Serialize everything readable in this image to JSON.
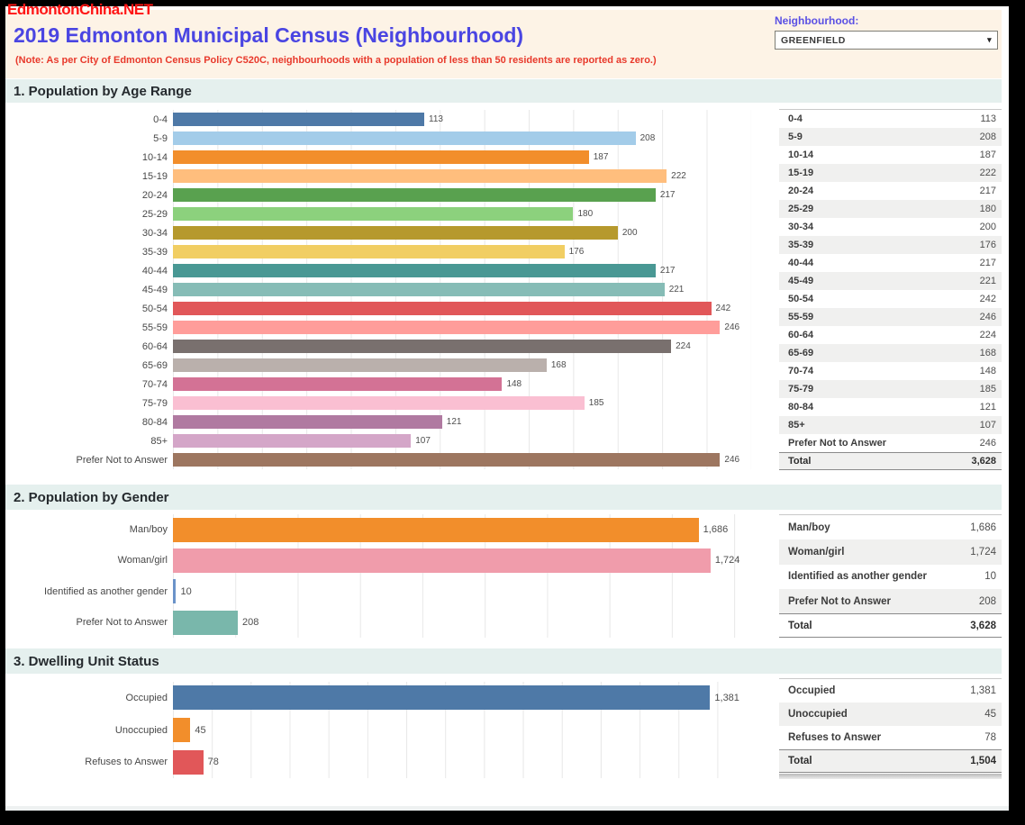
{
  "watermark": "EdmontonChina.NET",
  "header": {
    "title": "2019 Edmonton Municipal Census (Neighbourhood)",
    "note": "(Note: As per City of Edmonton Census Policy C520C, neighbourhoods with a population of less than 50 residents are reported as zero.)",
    "filter_label": "Neighbourhood:",
    "filter_value": "GREENFIELD",
    "caret_icon": "▾"
  },
  "section_titles": {
    "s1": "1. Population by Age Range",
    "s2": "2. Population by Gender",
    "s3": "3. Dwelling Unit Status"
  },
  "colors": {
    "gridline": "#e8e8e8",
    "title_blue": "#4a45e2",
    "note_red": "#e8392b",
    "header_cream": "#fdf3e6",
    "section_mint": "#e5f0ee"
  },
  "chart_data": [
    {
      "type": "bar",
      "orientation": "horizontal",
      "title": "1. Population by Age Range",
      "categories": [
        "0-4",
        "5-9",
        "10-14",
        "15-19",
        "20-24",
        "25-29",
        "30-34",
        "35-39",
        "40-44",
        "45-49",
        "50-54",
        "55-59",
        "60-64",
        "65-69",
        "70-74",
        "75-79",
        "80-84",
        "85+",
        "Prefer Not to Answer"
      ],
      "values": [
        113,
        208,
        187,
        222,
        217,
        180,
        200,
        176,
        217,
        221,
        242,
        246,
        224,
        168,
        148,
        185,
        121,
        107,
        246
      ],
      "value_labels": [
        "113",
        "208",
        "187",
        "222",
        "217",
        "180",
        "200",
        "176",
        "217",
        "221",
        "242",
        "246",
        "224",
        "168",
        "148",
        "185",
        "121",
        "107",
        "246"
      ],
      "bar_colors": [
        "#4e79a7",
        "#a3cce9",
        "#f28e2b",
        "#ffbe7d",
        "#59a14f",
        "#8cd17d",
        "#b6992d",
        "#f1ce63",
        "#499894",
        "#86bcb6",
        "#e15759",
        "#ff9d9a",
        "#79706e",
        "#bab0ac",
        "#d37295",
        "#fabfd2",
        "#b07aa1",
        "#d4a6c8",
        "#9d7660"
      ],
      "xlim": [
        0,
        260
      ],
      "gridline_interval": 20,
      "grid": true,
      "legend": false
    },
    {
      "type": "bar",
      "orientation": "horizontal",
      "title": "2. Population by Gender",
      "categories": [
        "Man/boy",
        "Woman/girl",
        "Identified as another gender",
        "Prefer Not to Answer"
      ],
      "values": [
        1686,
        1724,
        10,
        208
      ],
      "value_labels": [
        "1,686",
        "1,724",
        "10",
        "208"
      ],
      "bar_colors": [
        "#f28e2b",
        "#f09cab",
        "#6b93c9",
        "#79b7ab"
      ],
      "xlim": [
        0,
        1840
      ],
      "gridline_interval": 200,
      "grid": true,
      "legend": false
    },
    {
      "type": "bar",
      "orientation": "horizontal",
      "title": "3. Dwelling Unit Status",
      "categories": [
        "Occupied",
        "Unoccupied",
        "Refuses to Answer"
      ],
      "values": [
        1381,
        45,
        78
      ],
      "value_labels": [
        "1,381",
        "45",
        "78"
      ],
      "bar_colors": [
        "#4e79a7",
        "#f28e2b",
        "#e15759"
      ],
      "xlim": [
        0,
        1475
      ],
      "gridline_interval": 100,
      "grid": true,
      "legend": false
    }
  ],
  "tables": [
    {
      "rows": [
        {
          "label": "0-4",
          "value": "113"
        },
        {
          "label": "5-9",
          "value": "208"
        },
        {
          "label": "10-14",
          "value": "187"
        },
        {
          "label": "15-19",
          "value": "222"
        },
        {
          "label": "20-24",
          "value": "217"
        },
        {
          "label": "25-29",
          "value": "180"
        },
        {
          "label": "30-34",
          "value": "200"
        },
        {
          "label": "35-39",
          "value": "176"
        },
        {
          "label": "40-44",
          "value": "217"
        },
        {
          "label": "45-49",
          "value": "221"
        },
        {
          "label": "50-54",
          "value": "242"
        },
        {
          "label": "55-59",
          "value": "246"
        },
        {
          "label": "60-64",
          "value": "224"
        },
        {
          "label": "65-69",
          "value": "168"
        },
        {
          "label": "70-74",
          "value": "148"
        },
        {
          "label": "75-79",
          "value": "185"
        },
        {
          "label": "80-84",
          "value": "121"
        },
        {
          "label": "85+",
          "value": "107"
        },
        {
          "label": "Prefer Not to Answer",
          "value": "246"
        },
        {
          "label": "Total",
          "value": "3,628",
          "total": true
        }
      ]
    },
    {
      "rows": [
        {
          "label": "Man/boy",
          "value": "1,686"
        },
        {
          "label": "Woman/girl",
          "value": "1,724"
        },
        {
          "label": "Identified as another gender",
          "value": "10"
        },
        {
          "label": "Prefer Not to Answer",
          "value": "208"
        },
        {
          "label": "Total",
          "value": "3,628",
          "total": true
        }
      ]
    },
    {
      "rows": [
        {
          "label": "Occupied",
          "value": "1,381"
        },
        {
          "label": "Unoccupied",
          "value": "45"
        },
        {
          "label": "Refuses to Answer",
          "value": "78"
        },
        {
          "label": "Total",
          "value": "1,504",
          "total": true
        }
      ]
    }
  ]
}
